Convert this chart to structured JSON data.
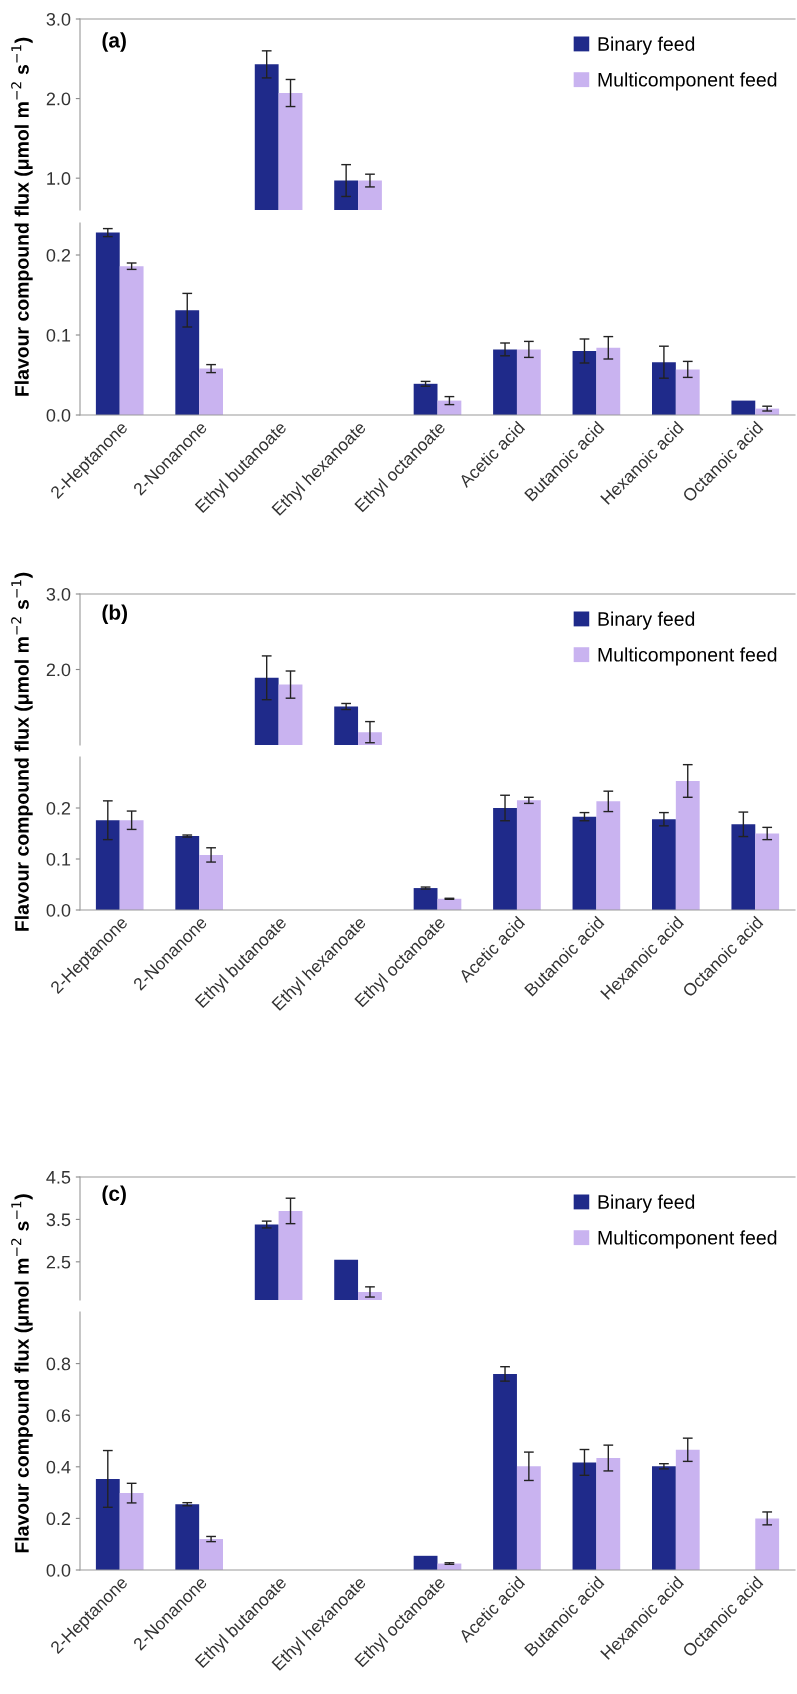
{
  "chart_data": [
    {
      "type": "bar",
      "ylabel": "Flavour compound flux (μmol m$^{−2}$ s$^{−1}$)",
      "annotations": [
        "(a)"
      ],
      "legend": "top right",
      "tick_labels": "y",
      "categories": [
        null,
        null,
        null,
        null,
        null,
        null,
        null,
        null,
        null
      ],
      "ylim": [
        0.6,
        3.0
      ],
      "yticks": [
        {
          "value": 1.0,
          "label": "1.0"
        },
        {
          "value": 2.0,
          "label": "2.0"
        },
        {
          "value": 3.0,
          "label": "3.0"
        }
      ],
      "series": [
        {
          "name": "Binary feed",
          "color": "#1f2a8a",
          "values": [
            null,
            null,
            2.43,
            0.97,
            null,
            null,
            null,
            null,
            null
          ],
          "errors": [
            null,
            null,
            0.17,
            0.2,
            null,
            null,
            null,
            null,
            null
          ]
        },
        {
          "name": "Multicomponent feed",
          "color": "#c9b3f0",
          "values": [
            null,
            null,
            2.07,
            0.97,
            null,
            null,
            null,
            null,
            null
          ],
          "errors": [
            null,
            null,
            0.17,
            0.08,
            null,
            null,
            null,
            null,
            null
          ]
        }
      ]
    },
    {
      "type": "bar",
      "categories": [
        "2-Heptanone",
        "2-Nonanone",
        "Ethyl butanoate",
        "Ethyl hexanoate",
        "Ethyl octanoate",
        "Acetic acid",
        "Butanoic acid",
        "Hexanoic acid",
        "Octanoic acid"
      ],
      "ylim": [
        0,
        0.24
      ],
      "yticks": [
        {
          "value": 0,
          "label": "0.0"
        },
        {
          "value": 0.1,
          "label": "0.1"
        },
        {
          "value": 0.2,
          "label": "0.2"
        }
      ],
      "series": [
        {
          "color": "#1f2a8a",
          "values": [
            0.228,
            0.131,
            null,
            null,
            0.039,
            0.082,
            0.08,
            0.066,
            0.018
          ],
          "errors": [
            0.005,
            0.021,
            null,
            null,
            0.003,
            0.008,
            0.015,
            0.02,
            null
          ]
        },
        {
          "color": "#c9b3f0",
          "values": [
            0.186,
            0.058,
            null,
            null,
            0.018,
            0.082,
            0.084,
            0.057,
            0.008
          ],
          "errors": [
            0.004,
            0.005,
            null,
            null,
            0.005,
            0.01,
            0.014,
            0.01,
            0.003
          ]
        }
      ]
    },
    {
      "type": "bar",
      "ylabel": "Flavour compound flux (μmol m$^{−2}$ s$^{−1}$)",
      "annotations": [
        "(b)"
      ],
      "legend": "top right",
      "tick_labels": "y",
      "categories": [
        null,
        null,
        null,
        null,
        null,
        null,
        null,
        null,
        null
      ],
      "ylim": [
        1.0,
        3.0
      ],
      "yticks": [
        {
          "value": 2.0,
          "label": "2.0"
        },
        {
          "value": 3.0,
          "label": "3.0"
        }
      ],
      "series": [
        {
          "name": "Binary feed",
          "color": "#1f2a8a",
          "values": [
            null,
            null,
            1.89,
            1.51,
            null,
            null,
            null,
            null,
            null
          ],
          "errors": [
            null,
            null,
            0.29,
            0.04,
            null,
            null,
            null,
            null,
            null
          ]
        },
        {
          "name": "Multicomponent feed",
          "color": "#c9b3f0",
          "values": [
            null,
            null,
            1.8,
            1.17,
            null,
            null,
            null,
            null,
            null
          ],
          "errors": [
            null,
            null,
            0.18,
            0.14,
            null,
            null,
            null,
            null,
            null
          ]
        }
      ]
    },
    {
      "type": "bar",
      "categories": [
        "2-Heptanone",
        "2-Nonanone",
        "Ethyl butanoate",
        "Ethyl hexanoate",
        "Ethyl octanoate",
        "Acetic acid",
        "Butanoic acid",
        "Hexanoic acid",
        "Octanoic acid"
      ],
      "ylim": [
        0,
        0.3
      ],
      "yticks": [
        {
          "value": 0,
          "label": "0.0"
        },
        {
          "value": 0.1,
          "label": "0.1"
        },
        {
          "value": 0.2,
          "label": "0.2"
        }
      ],
      "series": [
        {
          "color": "#1f2a8a",
          "values": [
            0.176,
            0.145,
            null,
            null,
            0.043,
            0.2,
            0.183,
            0.178,
            0.168
          ],
          "errors": [
            0.038,
            0.002,
            null,
            null,
            0.002,
            0.025,
            0.008,
            0.013,
            0.024
          ]
        },
        {
          "color": "#c9b3f0",
          "values": [
            0.176,
            0.108,
            null,
            null,
            0.022,
            0.215,
            0.213,
            0.253,
            0.15
          ],
          "errors": [
            0.018,
            0.014,
            null,
            null,
            0.001,
            0.006,
            0.02,
            0.032,
            0.012
          ]
        }
      ]
    },
    {
      "type": "bar",
      "ylabel": "Flavour compound flux (μmol m$^{−2}$ s$^{−1}$)",
      "annotations": [
        "(c)"
      ],
      "legend": "top right",
      "tick_labels": "y",
      "categories": [
        null,
        null,
        null,
        null,
        null,
        null,
        null,
        null,
        null
      ],
      "ylim": [
        1.6,
        4.5
      ],
      "yticks": [
        {
          "value": 2.5,
          "label": "2.5"
        },
        {
          "value": 3.5,
          "label": "3.5"
        },
        {
          "value": 4.5,
          "label": "4.5"
        }
      ],
      "series": [
        {
          "name": "Binary feed",
          "color": "#1f2a8a",
          "values": [
            null,
            null,
            3.38,
            2.55,
            null,
            null,
            null,
            null,
            null
          ],
          "errors": [
            null,
            null,
            0.08,
            null,
            null,
            null,
            null,
            null,
            null
          ]
        },
        {
          "name": "Multicomponent feed",
          "color": "#c9b3f0",
          "values": [
            null,
            null,
            3.7,
            1.79,
            null,
            null,
            null,
            null,
            null
          ],
          "errors": [
            null,
            null,
            0.3,
            0.12,
            null,
            null,
            null,
            null,
            null
          ]
        }
      ]
    },
    {
      "type": "bar",
      "categories": [
        "2-Heptanone",
        "2-Nonanone",
        "Ethyl butanoate",
        "Ethyl hexanoate",
        "Ethyl octanoate",
        "Acetic acid",
        "Butanoic acid",
        "Hexanoic acid",
        "Octanoic acid"
      ],
      "ylim": [
        0,
        1.0
      ],
      "yticks": [
        {
          "value": 0,
          "label": "0.0"
        },
        {
          "value": 0.2,
          "label": "0.2"
        },
        {
          "value": 0.4,
          "label": "0.4"
        },
        {
          "value": 0.6,
          "label": "0.6"
        },
        {
          "value": 0.8,
          "label": "0.8"
        }
      ],
      "series": [
        {
          "color": "#1f2a8a",
          "values": [
            0.353,
            0.255,
            null,
            null,
            0.055,
            0.76,
            0.417,
            0.402,
            0
          ],
          "errors": [
            0.11,
            0.006,
            null,
            null,
            null,
            0.028,
            0.05,
            0.01,
            null
          ]
        },
        {
          "color": "#c9b3f0",
          "values": [
            0.298,
            0.12,
            null,
            null,
            0.025,
            0.402,
            0.434,
            0.466,
            0.2
          ],
          "errors": [
            0.038,
            0.01,
            null,
            null,
            0.003,
            0.055,
            0.05,
            0.045,
            0.025
          ]
        }
      ]
    }
  ]
}
